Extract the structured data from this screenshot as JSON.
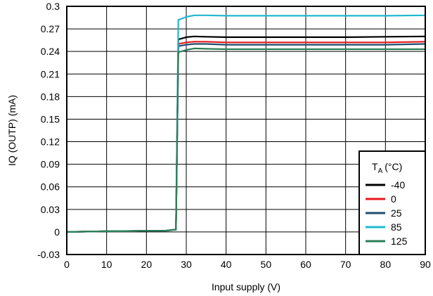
{
  "chart_data": {
    "type": "line",
    "xlabel": "Input supply (V)",
    "ylabel": "IQ (OUTP) (mA)",
    "xlim": [
      0,
      90
    ],
    "ylim": [
      -0.03,
      0.3
    ],
    "xticks": [
      "0",
      "10",
      "20",
      "30",
      "40",
      "50",
      "60",
      "70",
      "80",
      "90"
    ],
    "yticks": [
      "-0.03",
      "0",
      "0.03",
      "0.06",
      "0.09",
      "0.12",
      "0.15",
      "0.18",
      "0.21",
      "0.24",
      "0.27",
      "0.3"
    ],
    "grid": true,
    "legend": {
      "title_main": "T",
      "title_sub": "A",
      "title_unit": "(°C)",
      "placement": "bottom-right"
    },
    "series": [
      {
        "name": "-40",
        "color": "#000000",
        "x": [
          0,
          5,
          10,
          15,
          20,
          25,
          27,
          27.4,
          28,
          30,
          32,
          35,
          40,
          50,
          60,
          70,
          80,
          90
        ],
        "y": [
          0,
          0.0005,
          0.001,
          0.0012,
          0.0015,
          0.0018,
          0.003,
          0.003,
          0.256,
          0.259,
          0.26,
          0.2595,
          0.259,
          0.259,
          0.259,
          0.259,
          0.2595,
          0.26
        ]
      },
      {
        "name": "0",
        "color": "#e8191c",
        "x": [
          0,
          5,
          10,
          15,
          20,
          25,
          27,
          27.4,
          28,
          30,
          32,
          35,
          40,
          50,
          60,
          70,
          80,
          90
        ],
        "y": [
          0,
          0.0005,
          0.001,
          0.0012,
          0.0015,
          0.0018,
          0.003,
          0.003,
          0.25,
          0.252,
          0.253,
          0.253,
          0.252,
          0.252,
          0.252,
          0.252,
          0.252,
          0.253
        ]
      },
      {
        "name": "25",
        "color": "#1d4e6f",
        "x": [
          0,
          5,
          10,
          15,
          20,
          25,
          27,
          27.4,
          28,
          30,
          32,
          35,
          40,
          50,
          60,
          70,
          80,
          90
        ],
        "y": [
          0,
          0.0005,
          0.001,
          0.0012,
          0.0015,
          0.0018,
          0.003,
          0.003,
          0.247,
          0.249,
          0.25,
          0.25,
          0.249,
          0.249,
          0.249,
          0.249,
          0.249,
          0.25
        ]
      },
      {
        "name": "85",
        "color": "#21b8cf",
        "x": [
          0,
          5,
          10,
          15,
          20,
          25,
          27,
          27.4,
          28,
          30,
          32,
          35,
          40,
          50,
          60,
          70,
          80,
          90
        ],
        "y": [
          0,
          0.0005,
          0.001,
          0.0012,
          0.0015,
          0.0018,
          0.003,
          0.003,
          0.282,
          0.286,
          0.288,
          0.288,
          0.2875,
          0.2875,
          0.2875,
          0.2875,
          0.2875,
          0.288
        ]
      },
      {
        "name": "125",
        "color": "#2e7d57",
        "x": [
          0,
          5,
          10,
          15,
          20,
          25,
          27,
          27.4,
          28,
          30,
          32,
          35,
          40,
          50,
          60,
          70,
          80,
          90
        ],
        "y": [
          0,
          0.0005,
          0.001,
          0.0012,
          0.0015,
          0.0018,
          0.003,
          0.003,
          0.239,
          0.242,
          0.244,
          0.2435,
          0.243,
          0.243,
          0.243,
          0.243,
          0.243,
          0.243
        ]
      }
    ]
  }
}
